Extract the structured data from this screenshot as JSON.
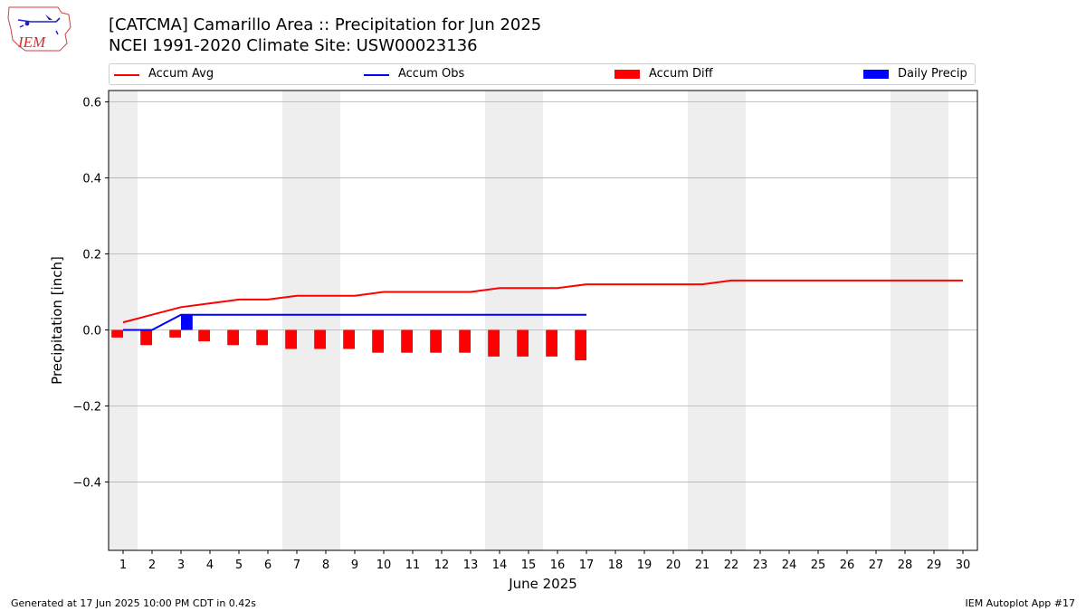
{
  "title_line1": "[CATCMA] Camarillo Area :: Precipitation for Jun 2025",
  "title_line2": "NCEI 1991-2020 Climate Site: USW00023136",
  "logo": {
    "icon": "iem-logo",
    "text": "IEM"
  },
  "legend": [
    {
      "label": "Accum Avg",
      "kind": "line",
      "color": "#ff0000"
    },
    {
      "label": "Accum Obs",
      "kind": "line",
      "color": "#0000ff"
    },
    {
      "label": "Accum Diff",
      "kind": "patch",
      "color": "#ff0000"
    },
    {
      "label": "Daily Precip",
      "kind": "patch",
      "color": "#0000ff"
    }
  ],
  "footer_left": "Generated at 17 Jun 2025 10:00 PM CDT in 0.42s",
  "footer_right": "IEM Autoplot App #17",
  "colors": {
    "avg": "#ff0000",
    "obs": "#0000ff",
    "diff": "#ff0000",
    "daily": "#0000ff",
    "weekend": "#eeeeee",
    "grid": "#b0b0b0"
  },
  "chart_data": {
    "type": "line",
    "xlabel": "June 2025",
    "ylabel": "Precipitation [inch]",
    "xlim": [
      0.5,
      30.5
    ],
    "ylim": [
      -0.58,
      0.63
    ],
    "x_ticks": [
      1,
      2,
      3,
      4,
      5,
      6,
      7,
      8,
      9,
      10,
      11,
      12,
      13,
      14,
      15,
      16,
      17,
      18,
      19,
      20,
      21,
      22,
      23,
      24,
      25,
      26,
      27,
      28,
      29,
      30
    ],
    "y_ticks": [
      -0.4,
      -0.2,
      0.0,
      0.2,
      0.4,
      0.6
    ],
    "y_tick_labels": [
      "−0.4",
      "−0.2",
      "0.0",
      "0.2",
      "0.4",
      "0.6"
    ],
    "grid": "y",
    "legend_position": "top",
    "weekend_days": [
      1,
      7,
      8,
      14,
      15,
      21,
      22,
      28,
      29
    ],
    "series": [
      {
        "name": "Accum Avg",
        "type": "line",
        "x": [
          1,
          2,
          3,
          4,
          5,
          6,
          7,
          8,
          9,
          10,
          11,
          12,
          13,
          14,
          15,
          16,
          17,
          18,
          19,
          20,
          21,
          22,
          23,
          24,
          25,
          26,
          27,
          28,
          29,
          30
        ],
        "values": [
          0.02,
          0.04,
          0.06,
          0.07,
          0.08,
          0.08,
          0.09,
          0.09,
          0.09,
          0.1,
          0.1,
          0.1,
          0.1,
          0.11,
          0.11,
          0.11,
          0.12,
          0.12,
          0.12,
          0.12,
          0.12,
          0.13,
          0.13,
          0.13,
          0.13,
          0.13,
          0.13,
          0.13,
          0.13,
          0.13
        ]
      },
      {
        "name": "Accum Obs",
        "type": "line",
        "x": [
          1,
          2,
          3,
          4,
          5,
          6,
          7,
          8,
          9,
          10,
          11,
          12,
          13,
          14,
          15,
          16,
          17
        ],
        "values": [
          0.0,
          0.0,
          0.04,
          0.04,
          0.04,
          0.04,
          0.04,
          0.04,
          0.04,
          0.04,
          0.04,
          0.04,
          0.04,
          0.04,
          0.04,
          0.04,
          0.04
        ]
      },
      {
        "name": "Accum Diff",
        "type": "bar",
        "x": [
          1,
          2,
          3,
          4,
          5,
          6,
          7,
          8,
          9,
          10,
          11,
          12,
          13,
          14,
          15,
          16,
          17
        ],
        "values": [
          -0.02,
          -0.04,
          -0.02,
          -0.03,
          -0.04,
          -0.04,
          -0.05,
          -0.05,
          -0.05,
          -0.06,
          -0.06,
          -0.06,
          -0.06,
          -0.07,
          -0.07,
          -0.07,
          -0.08
        ]
      },
      {
        "name": "Daily Precip",
        "type": "bar",
        "x": [
          3
        ],
        "values": [
          0.04
        ]
      }
    ]
  }
}
